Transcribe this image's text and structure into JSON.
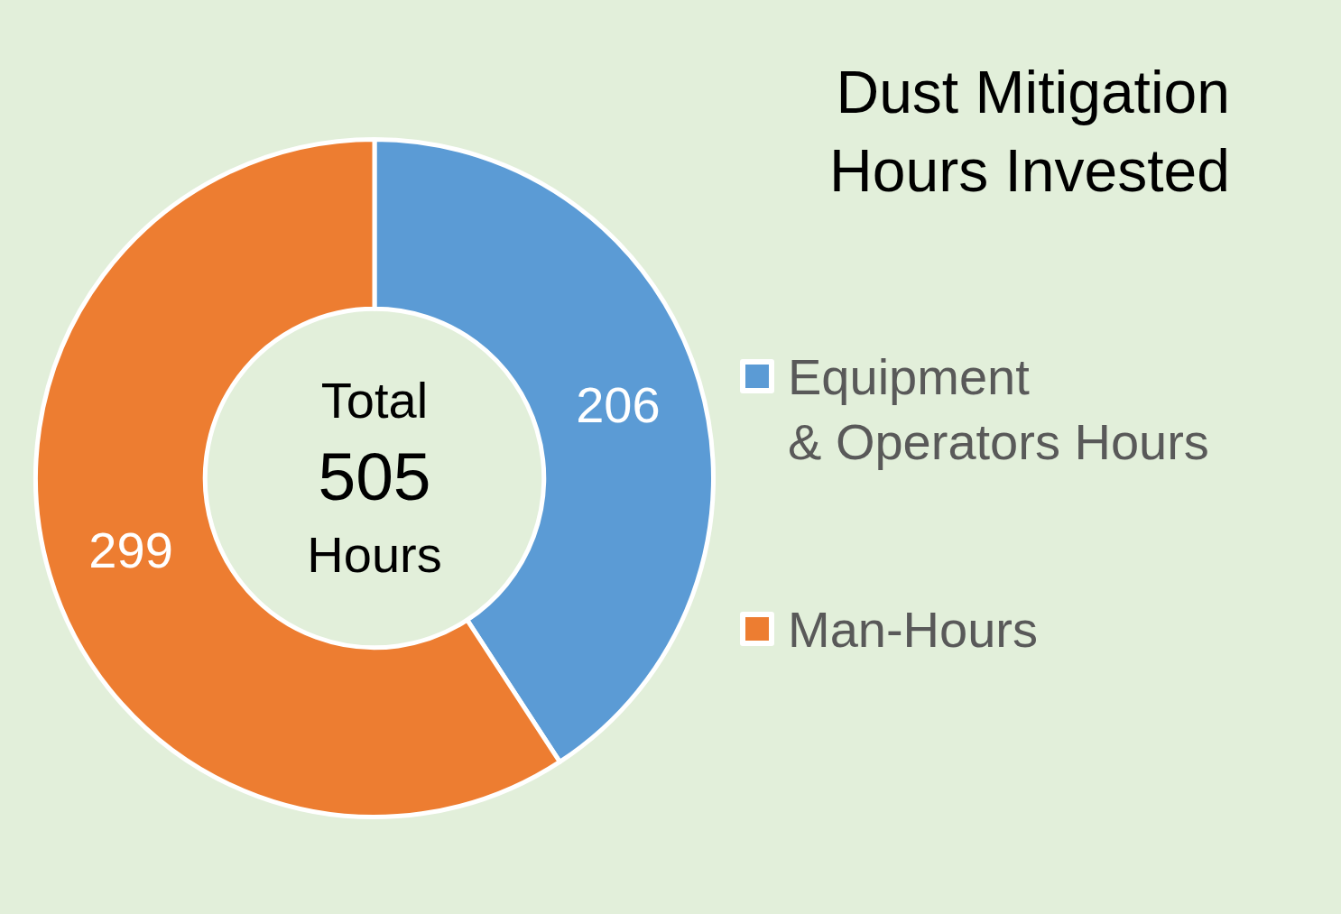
{
  "chart_data": {
    "type": "donut",
    "title": "Dust Mitigation Hours Invested",
    "categories": [
      "Equipment\n& Operators Hours",
      "Man-Hours"
    ],
    "values": [
      206,
      299
    ],
    "colors": [
      "#5b9bd5",
      "#ed7d31"
    ],
    "data_labels": true,
    "legend": "right",
    "annotations": [
      "Total",
      "505",
      "Hours"
    ]
  }
}
